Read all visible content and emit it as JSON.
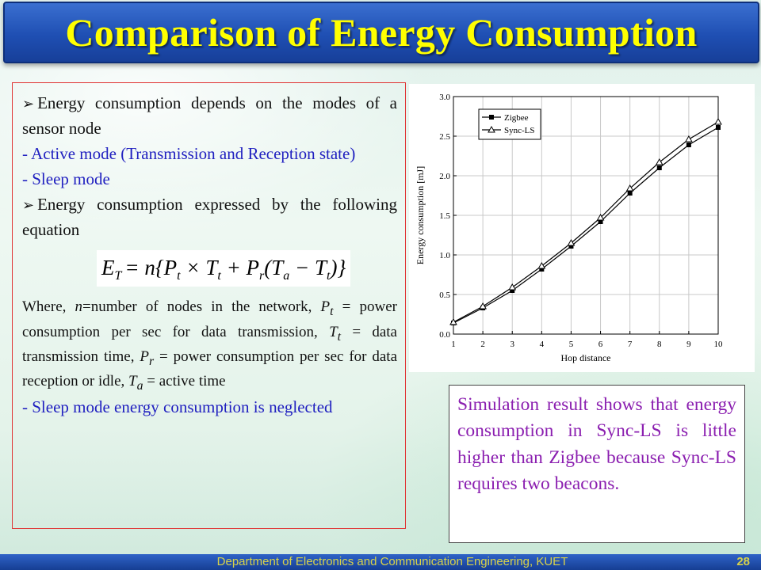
{
  "slide": {
    "title": "Comparison of Energy Consumption",
    "footer": "Department of Electronics and Communication Engineering, KUET",
    "page_number": "28"
  },
  "left_panel": {
    "bullet1": "Energy consumption depends on the modes of a sensor node",
    "bullet1_sub1": "- Active mode (Transmission and Reception state)",
    "bullet1_sub2": "- Sleep mode",
    "bullet2": "Energy consumption expressed by the following equation",
    "equation_lhs": "E",
    "equation_lhs_sub": "T",
    "equation_rhs": "= n{P",
    "where": {
      "w1": "Where, ",
      "n": "n",
      "w2": "=number of nodes in the network, ",
      "p": "P",
      "p_sub": "t",
      "w3": " = power consumption per sec for data transmission, ",
      "t": "T",
      "t_sub": "t",
      "w4": " = data transmission time, ",
      "pr": "P",
      "pr_sub": "r",
      "w5": " = power consumption per sec for data reception or idle, ",
      "ta": "T",
      "ta_sub": "a",
      "w6": " = active time"
    },
    "note": "- Sleep mode energy consumption is neglected"
  },
  "right_panel": {
    "text": "Simulation result shows that energy consumption in Sync-LS is little higher than Zigbee because Sync-LS requires two beacons."
  },
  "chart_data": {
    "type": "line",
    "xlabel": "Hop distance",
    "ylabel": "Energy consumption [mJ]",
    "xlim": [
      1,
      10
    ],
    "ylim": [
      0.0,
      3.0
    ],
    "xticks": [
      1,
      2,
      3,
      4,
      5,
      6,
      7,
      8,
      9,
      10
    ],
    "yticks": [
      "0.0",
      "0.5",
      "1.0",
      "1.5",
      "2.0",
      "2.5",
      "3.0"
    ],
    "legend_position": "top-left",
    "grid": true,
    "x": [
      1,
      2,
      3,
      4,
      5,
      6,
      7,
      8,
      9,
      10
    ],
    "series": [
      {
        "name": "Zigbee",
        "marker": "square",
        "values": [
          0.14,
          0.33,
          0.55,
          0.82,
          1.11,
          1.42,
          1.78,
          2.1,
          2.39,
          2.61
        ]
      },
      {
        "name": "Sync-LS",
        "marker": "triangle",
        "values": [
          0.15,
          0.35,
          0.59,
          0.86,
          1.15,
          1.47,
          1.84,
          2.17,
          2.46,
          2.68
        ]
      }
    ]
  }
}
